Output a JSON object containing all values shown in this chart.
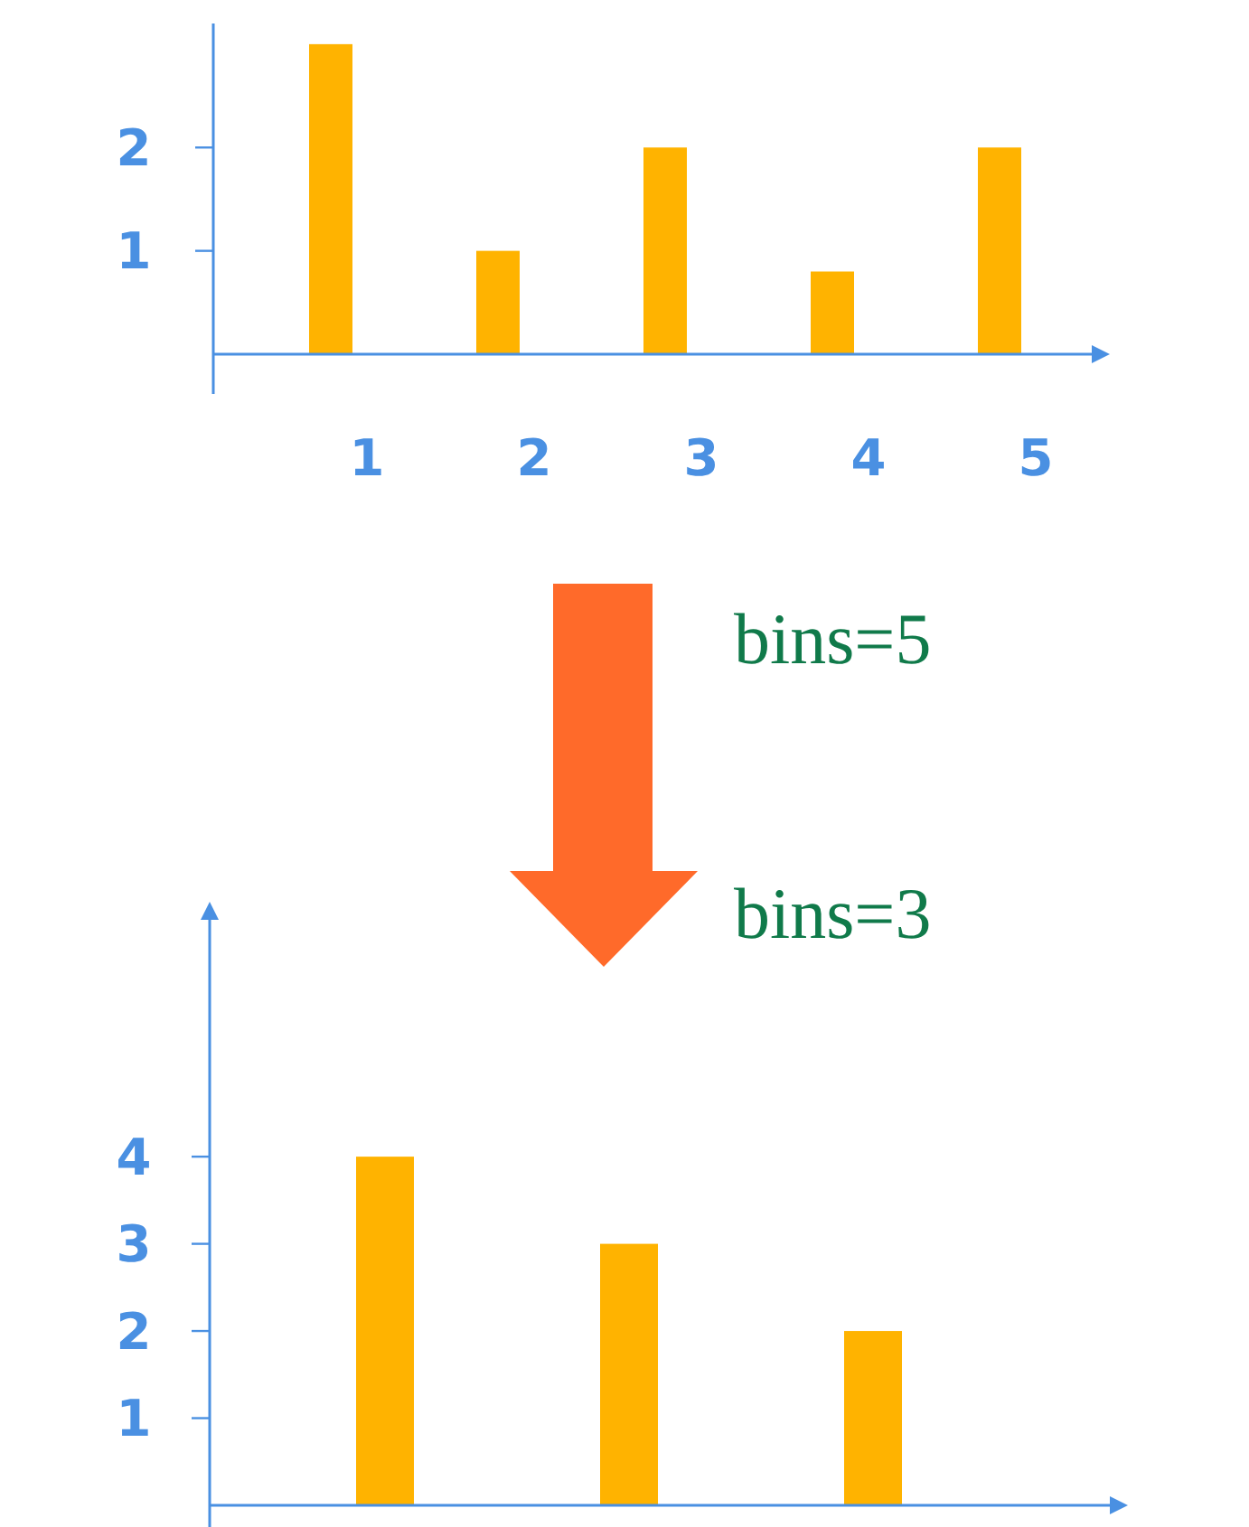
{
  "chart_data": [
    {
      "type": "bar",
      "categories": [
        "1",
        "2",
        "3",
        "4",
        "5"
      ],
      "values": [
        3,
        1,
        2,
        0.8,
        2
      ],
      "color": "#ffb300",
      "ylim": [
        0,
        3.2
      ],
      "yticks": [
        1,
        2
      ],
      "grid": false,
      "annotations": [
        "bins=5"
      ]
    },
    {
      "type": "bar",
      "categories": [
        null,
        null,
        null
      ],
      "values": [
        4,
        3,
        2
      ],
      "color": "#ffb300",
      "ylim": [
        0,
        6.8
      ],
      "yticks": [
        1,
        2,
        3,
        4
      ],
      "grid": false,
      "annotations": [
        "bins=3"
      ]
    }
  ]
}
